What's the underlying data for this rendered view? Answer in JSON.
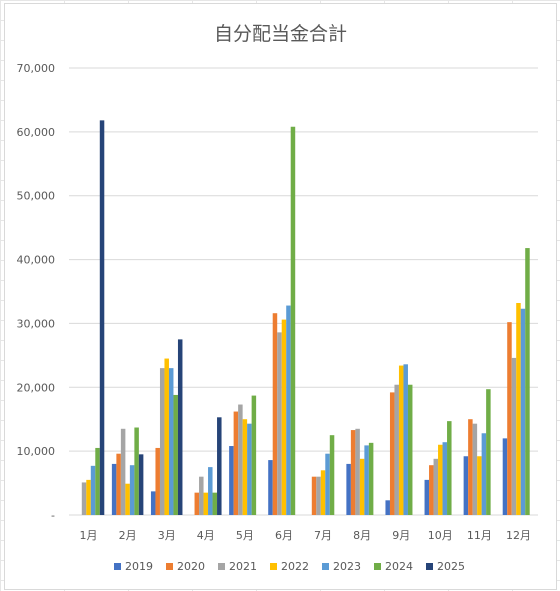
{
  "chart_data": {
    "type": "bar",
    "title": "自分配当金合計",
    "categories": [
      "1月",
      "2月",
      "3月",
      "4月",
      "5月",
      "6月",
      "7月",
      "8月",
      "9月",
      "10月",
      "11月",
      "12月"
    ],
    "ylim": [
      0,
      70000
    ],
    "yticks": [
      "-",
      "10,000",
      "20,000",
      "30,000",
      "40,000",
      "50,000",
      "60,000",
      "70,000"
    ],
    "grid": true,
    "legend_position": "bottom",
    "series": [
      {
        "name": "2019",
        "color": "#4472c4",
        "values": [
          0,
          8000,
          3700,
          0,
          10800,
          8600,
          0,
          8000,
          2300,
          5500,
          9200,
          12000
        ]
      },
      {
        "name": "2020",
        "color": "#ed7d31",
        "values": [
          0,
          9600,
          10500,
          3500,
          16200,
          31600,
          6000,
          13300,
          19200,
          7800,
          15000,
          30200
        ]
      },
      {
        "name": "2021",
        "color": "#a5a5a5",
        "values": [
          5100,
          13500,
          23000,
          6000,
          17300,
          28600,
          6000,
          13500,
          20400,
          8800,
          14300,
          24600
        ]
      },
      {
        "name": "2022",
        "color": "#ffc000",
        "values": [
          5500,
          4900,
          24500,
          3500,
          15000,
          30600,
          7000,
          8800,
          23400,
          11000,
          9200,
          33200
        ]
      },
      {
        "name": "2023",
        "color": "#5b9bd5",
        "values": [
          7700,
          7800,
          23000,
          7500,
          14300,
          32800,
          9600,
          10900,
          23600,
          11400,
          12800,
          32300
        ]
      },
      {
        "name": "2024",
        "color": "#70ad47",
        "values": [
          10500,
          13700,
          18800,
          3500,
          18700,
          60800,
          12500,
          11300,
          20400,
          14700,
          19700,
          41800
        ]
      },
      {
        "name": "2025",
        "color": "#264478",
        "values": [
          61800,
          9500,
          27500,
          15300,
          0,
          0,
          0,
          0,
          0,
          0,
          0,
          0
        ]
      }
    ]
  }
}
